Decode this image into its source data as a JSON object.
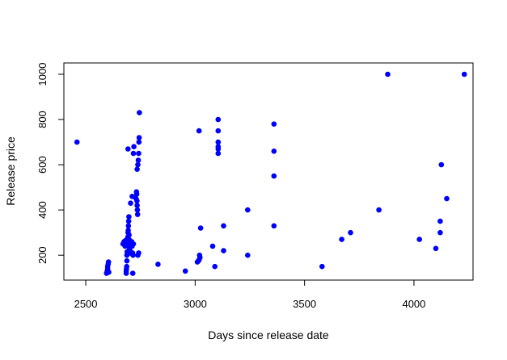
{
  "chart_data": {
    "type": "scatter",
    "title": "",
    "xlabel": "Days since release date",
    "ylabel": "Release price",
    "xlim": [
      2400,
      4270
    ],
    "ylim": [
      90,
      1050
    ],
    "x_ticks": [
      2500,
      3000,
      3500,
      4000
    ],
    "y_ticks": [
      200,
      400,
      600,
      800,
      1000
    ],
    "x_tick_labels": [
      "2500",
      "3000",
      "3500",
      "4000"
    ],
    "y_tick_labels": [
      "200",
      "400",
      "600",
      "800",
      "1000"
    ],
    "grid": false,
    "legend": "none",
    "point_color": "#0000ff",
    "series": [
      {
        "points": [
          [
            2460,
            700
          ],
          [
            2595,
            120
          ],
          [
            2598,
            130
          ],
          [
            2600,
            140
          ],
          [
            2600,
            150
          ],
          [
            2602,
            160
          ],
          [
            2604,
            170
          ],
          [
            2605,
            125
          ],
          [
            2670,
            250
          ],
          [
            2675,
            260
          ],
          [
            2678,
            255
          ],
          [
            2680,
            240
          ],
          [
            2682,
            265
          ],
          [
            2684,
            245
          ],
          [
            2685,
            120
          ],
          [
            2685,
            130
          ],
          [
            2686,
            140
          ],
          [
            2687,
            150
          ],
          [
            2688,
            175
          ],
          [
            2688,
            200
          ],
          [
            2689,
            215
          ],
          [
            2690,
            250
          ],
          [
            2691,
            260
          ],
          [
            2692,
            280
          ],
          [
            2693,
            300
          ],
          [
            2694,
            310
          ],
          [
            2695,
            330
          ],
          [
            2696,
            350
          ],
          [
            2697,
            370
          ],
          [
            2698,
            290
          ],
          [
            2698,
            270
          ],
          [
            2700,
            230
          ],
          [
            2700,
            250
          ],
          [
            2702,
            220
          ],
          [
            2703,
            210
          ],
          [
            2710,
            260
          ],
          [
            2712,
            240
          ],
          [
            2714,
            210
          ],
          [
            2716,
            200
          ],
          [
            2718,
            250
          ],
          [
            2705,
            430
          ],
          [
            2712,
            460
          ],
          [
            2715,
            120
          ],
          [
            2718,
            650
          ],
          [
            2720,
            680
          ],
          [
            2693,
            670
          ],
          [
            2730,
            450
          ],
          [
            2732,
            480
          ],
          [
            2733,
            470
          ],
          [
            2734,
            440
          ],
          [
            2735,
            420
          ],
          [
            2736,
            400
          ],
          [
            2737,
            380
          ],
          [
            2735,
            580
          ],
          [
            2738,
            600
          ],
          [
            2740,
            620
          ],
          [
            2742,
            650
          ],
          [
            2743,
            700
          ],
          [
            2744,
            720
          ],
          [
            2745,
            830
          ],
          [
            2738,
            200
          ],
          [
            2742,
            210
          ],
          [
            2830,
            160
          ],
          [
            2955,
            130
          ],
          [
            3010,
            170
          ],
          [
            3015,
            175
          ],
          [
            3018,
            180
          ],
          [
            3020,
            200
          ],
          [
            3022,
            190
          ],
          [
            3025,
            320
          ],
          [
            3018,
            750
          ],
          [
            3080,
            240
          ],
          [
            3090,
            150
          ],
          [
            3105,
            800
          ],
          [
            3105,
            750
          ],
          [
            3105,
            700
          ],
          [
            3105,
            680
          ],
          [
            3105,
            670
          ],
          [
            3105,
            650
          ],
          [
            3130,
            220
          ],
          [
            3130,
            330
          ],
          [
            3240,
            400
          ],
          [
            3240,
            200
          ],
          [
            3360,
            780
          ],
          [
            3360,
            660
          ],
          [
            3360,
            550
          ],
          [
            3360,
            330
          ],
          [
            3580,
            150
          ],
          [
            3670,
            270
          ],
          [
            3710,
            300
          ],
          [
            3840,
            400
          ],
          [
            3880,
            1000
          ],
          [
            4025,
            270
          ],
          [
            4100,
            230
          ],
          [
            4120,
            350
          ],
          [
            4120,
            300
          ],
          [
            4125,
            600
          ],
          [
            4150,
            450
          ],
          [
            4230,
            1000
          ]
        ]
      }
    ]
  }
}
